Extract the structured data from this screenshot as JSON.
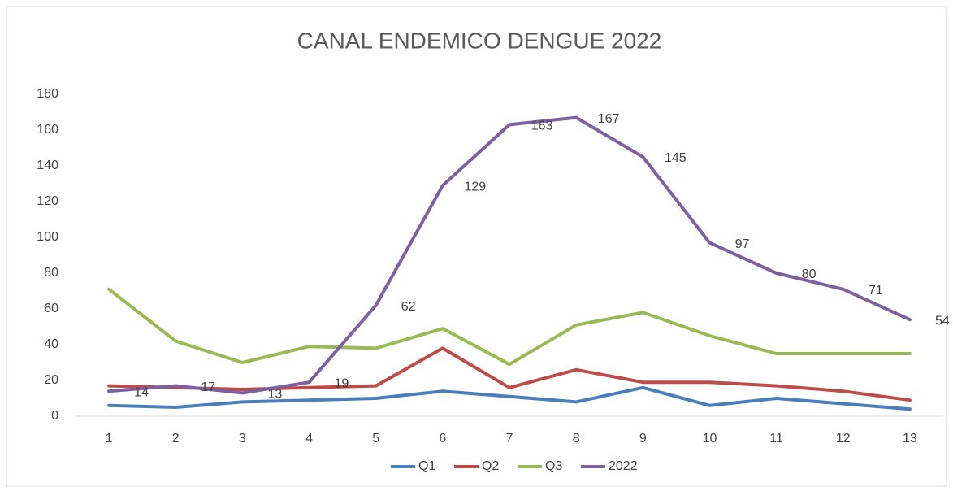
{
  "chart_data": {
    "type": "line",
    "title": "CANAL ENDEMICO  DENGUE 2022",
    "categories": [
      "1",
      "2",
      "3",
      "4",
      "5",
      "6",
      "7",
      "8",
      "9",
      "10",
      "11",
      "12",
      "13"
    ],
    "series": [
      {
        "name": "Q1",
        "color": "#4a7ebb",
        "values": [
          6,
          5,
          8,
          9,
          10,
          14,
          11,
          8,
          16,
          6,
          10,
          7,
          4
        ]
      },
      {
        "name": "Q2",
        "color": "#be4b48",
        "values": [
          17,
          16,
          15,
          16,
          17,
          38,
          16,
          26,
          19,
          19,
          17,
          14,
          9
        ]
      },
      {
        "name": "Q3",
        "color": "#98b954",
        "values": [
          71,
          42,
          30,
          39,
          38,
          49,
          29,
          51,
          58,
          45,
          35,
          35,
          35
        ]
      },
      {
        "name": "2022",
        "color": "#7d60a0",
        "values": [
          14,
          17,
          13,
          19,
          62,
          129,
          163,
          167,
          145,
          97,
          80,
          71,
          54
        ],
        "data_labels": true
      }
    ],
    "ylim": [
      0,
      180
    ],
    "yticks": [
      0,
      20,
      40,
      60,
      80,
      100,
      120,
      140,
      160,
      180
    ],
    "grid": false,
    "legend": "bottom"
  }
}
